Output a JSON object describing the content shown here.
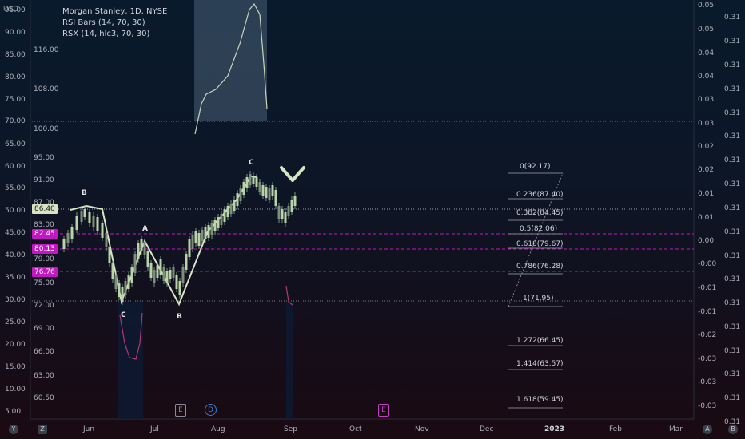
{
  "currency": "USD",
  "legend": {
    "title": "Morgan Stanley, 1D, NYSE",
    "indicator1": "RSI Bars (14, 70, 30)",
    "indicator2": "RSX (14, hlc3, 70, 30)"
  },
  "left_axis_outer": [
    "95.00",
    "90.00",
    "85.00",
    "80.00",
    "75.00",
    "70.00",
    "65.00",
    "60.00",
    "55.00",
    "50.00",
    "45.00",
    "40.00",
    "35.00",
    "30.00",
    "25.00",
    "20.00",
    "15.00",
    "10.00",
    "5.00"
  ],
  "left_axis_inner": [
    "116.00",
    "108.00",
    "100.00",
    "95.00",
    "91.00",
    "87.00",
    "83.00",
    "79.00",
    "75.00",
    "72.00",
    "69.00",
    "66.00",
    "63.00",
    "60.50"
  ],
  "right_axis1": [
    "0.05",
    "0.05",
    "0.04",
    "0.04",
    "0.03",
    "0.03",
    "0.02",
    "0.02",
    "0.01",
    "0.01",
    "0.00",
    "-0.00",
    "-0.01",
    "-0.01",
    "-0.02",
    "-0.03",
    "-0.03",
    "-0.03"
  ],
  "right_axis2": [
    "0.31",
    "0.31",
    "0.31",
    "0.31",
    "0.31",
    "0.31",
    "0.31",
    "0.31",
    "0.31",
    "0.31",
    "0.31",
    "0.31",
    "0.31",
    "0.31",
    "0.31",
    "0.31",
    "0.31",
    "0.31"
  ],
  "price_tags": {
    "current": "86.40",
    "pink1": "82.45",
    "pink2": "80.13",
    "pink3": "76.76"
  },
  "fib_levels": [
    "0(92.17)",
    "0.236(87.40)",
    "0.382(84.45)",
    "0.5(82.06)",
    "0.618(79.67)",
    "0.786(76.28)",
    "1(71.95)",
    "1.272(66.45)",
    "1.414(63.57)",
    "1.618(59.45)"
  ],
  "wave_labels": {
    "b1": "B",
    "c1": "C",
    "a1": "A",
    "b2": "B",
    "c2": "C"
  },
  "x_axis": [
    "Jun",
    "Jul",
    "Aug",
    "Sep",
    "Oct",
    "Nov",
    "Dec",
    "2023",
    "Feb",
    "Mar"
  ],
  "events": {
    "e1": "E",
    "d": "D",
    "e2": "E"
  },
  "corner_buttons": {
    "left_y": "Y",
    "left_z": "Z",
    "right_a": "A",
    "right_b": "B"
  },
  "colors": {
    "accent": "#d7e4c2",
    "pink": "#c317c3",
    "fib_line": "#9fa4b0",
    "rsx_line": "#c9d6b5",
    "rsi_curve": "#b23a6e"
  }
}
